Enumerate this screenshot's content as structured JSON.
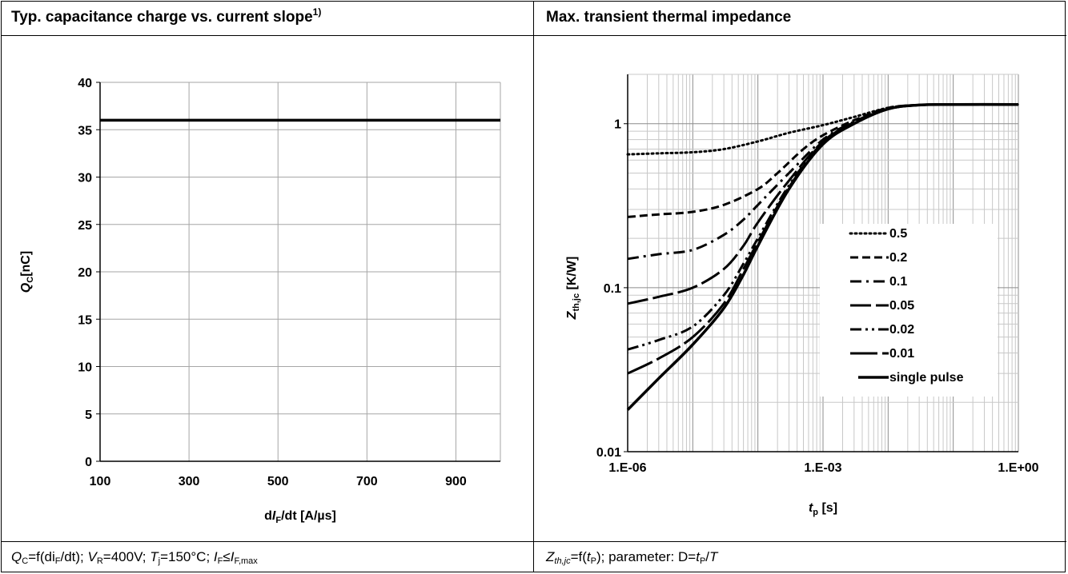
{
  "left": {
    "title": "Typ. capacitance charge vs. current slope",
    "title_sup": "1)",
    "caption": {
      "q": "Q",
      "q_sub": "C",
      "eq1": "=f(di",
      "di_sub": "F",
      "eq2": "/dt); ",
      "v": "V",
      "v_sub": "R",
      "eq3": "=400V; ",
      "t": "T",
      "t_sub": "j",
      "eq4": "=150°C; ",
      "i1": "I",
      "i1_sub": "F",
      "le": "≤",
      "i2": "I",
      "i2_sub": "F,max"
    },
    "xlabel": {
      "pre": "d",
      "var": "I",
      "sub": "F",
      "post": "/dt [A/µs]"
    },
    "ylabel": {
      "var": "Q",
      "sub": "C",
      "post": "[nC]"
    }
  },
  "right": {
    "title": "Max. transient thermal impedance",
    "caption": {
      "z": "Z",
      "z_sub": "th,jc",
      "eq1": "=f(",
      "t": "t",
      "t_sub": "P",
      "eq2": "); parameter: D=",
      "t2": "t",
      "t2_sub": "P",
      "slash": "/",
      "T": "T"
    },
    "xlabel": {
      "var": "t",
      "sub": "p",
      "post": " [s]"
    },
    "ylabel": {
      "var": "Z",
      "sub": "th,jc",
      "post": " [K/W]"
    }
  },
  "chart_data": [
    {
      "type": "line",
      "title": "Typ. capacitance charge vs. current slope",
      "xlabel": "dIF/dt [A/µs]",
      "ylabel": "QC[nC]",
      "xlim": [
        100,
        1000
      ],
      "ylim": [
        0,
        40
      ],
      "xticks": [
        100,
        300,
        500,
        700,
        900
      ],
      "xgrid": [
        100,
        300,
        500,
        700,
        900,
        1000
      ],
      "yticks": [
        0,
        5,
        10,
        15,
        20,
        25,
        30,
        35,
        40
      ],
      "grid": true,
      "series": [
        {
          "x": [
            100,
            1000
          ],
          "y": [
            36,
            36
          ]
        }
      ]
    },
    {
      "type": "line",
      "title": "Max. transient thermal impedance",
      "xlabel": "tp [s]",
      "ylabel": "Zth,jc [K/W]",
      "xscale": "log",
      "yscale": "log",
      "xlim": [
        1e-06,
        1
      ],
      "ylim": [
        0.01,
        2
      ],
      "xticks": [
        {
          "value": 1e-06,
          "label": "1.E-06"
        },
        {
          "value": 0.001,
          "label": "1.E-03"
        },
        {
          "value": 1,
          "label": "1.E+00"
        }
      ],
      "yticks": [
        {
          "value": 0.01,
          "label": "0.01"
        },
        {
          "value": 0.1,
          "label": "0.1"
        },
        {
          "value": 1,
          "label": "1"
        }
      ],
      "grid": true,
      "legend": "center-right",
      "series": [
        {
          "name": "0.5",
          "style": "dotted",
          "x": [
            1e-06,
            3e-06,
            1e-05,
            3e-05,
            0.0001,
            0.0003,
            0.001,
            0.003,
            0.01,
            0.03,
            0.1,
            1
          ],
          "y": [
            0.65,
            0.66,
            0.67,
            0.7,
            0.78,
            0.88,
            0.98,
            1.1,
            1.25,
            1.3,
            1.31,
            1.31
          ]
        },
        {
          "name": "0.2",
          "style": "dashed",
          "x": [
            1e-06,
            3e-06,
            1e-05,
            3e-05,
            0.0001,
            0.0002,
            0.0005,
            0.001,
            0.003,
            0.01,
            0.03,
            0.1,
            1
          ],
          "y": [
            0.27,
            0.28,
            0.29,
            0.32,
            0.4,
            0.5,
            0.7,
            0.85,
            1.05,
            1.25,
            1.3,
            1.31,
            1.31
          ]
        },
        {
          "name": "0.1",
          "style": "dashdot",
          "x": [
            1e-06,
            3e-06,
            1e-05,
            3e-05,
            6e-05,
            0.0001,
            0.0003,
            0.001,
            0.003,
            0.01,
            0.03,
            0.1,
            1
          ],
          "y": [
            0.15,
            0.16,
            0.17,
            0.21,
            0.26,
            0.32,
            0.5,
            0.8,
            1.03,
            1.23,
            1.3,
            1.31,
            1.31
          ]
        },
        {
          "name": "0.05",
          "style": "longdash",
          "x": [
            1e-06,
            3e-06,
            1e-05,
            3e-05,
            6e-05,
            0.0001,
            0.0003,
            0.001,
            0.003,
            0.01,
            0.03,
            0.1,
            1
          ],
          "y": [
            0.08,
            0.088,
            0.1,
            0.13,
            0.18,
            0.25,
            0.45,
            0.78,
            1.02,
            1.23,
            1.3,
            1.31,
            1.31
          ]
        },
        {
          "name": "0.02",
          "style": "dashdotdot",
          "x": [
            1e-06,
            3e-06,
            1e-05,
            3e-05,
            6e-05,
            0.0001,
            0.0003,
            0.001,
            0.003,
            0.01,
            0.03,
            0.1,
            1
          ],
          "y": [
            0.042,
            0.048,
            0.058,
            0.09,
            0.14,
            0.2,
            0.42,
            0.77,
            1.02,
            1.23,
            1.3,
            1.31,
            1.31
          ]
        },
        {
          "name": "0.01",
          "style": "longdash2",
          "x": [
            1e-06,
            3e-06,
            1e-05,
            3e-05,
            6e-05,
            0.0001,
            0.0003,
            0.001,
            0.003,
            0.01,
            0.03,
            0.1,
            1
          ],
          "y": [
            0.03,
            0.037,
            0.05,
            0.08,
            0.13,
            0.19,
            0.41,
            0.76,
            1.01,
            1.23,
            1.3,
            1.31,
            1.31
          ]
        },
        {
          "name": "single pulse",
          "style": "solid",
          "x": [
            1e-06,
            3e-06,
            1e-05,
            3e-05,
            6e-05,
            0.0001,
            0.0003,
            0.001,
            0.003,
            0.01,
            0.03,
            0.1,
            1
          ],
          "y": [
            0.018,
            0.028,
            0.045,
            0.075,
            0.12,
            0.18,
            0.4,
            0.75,
            1.0,
            1.23,
            1.3,
            1.31,
            1.31
          ]
        }
      ]
    }
  ]
}
